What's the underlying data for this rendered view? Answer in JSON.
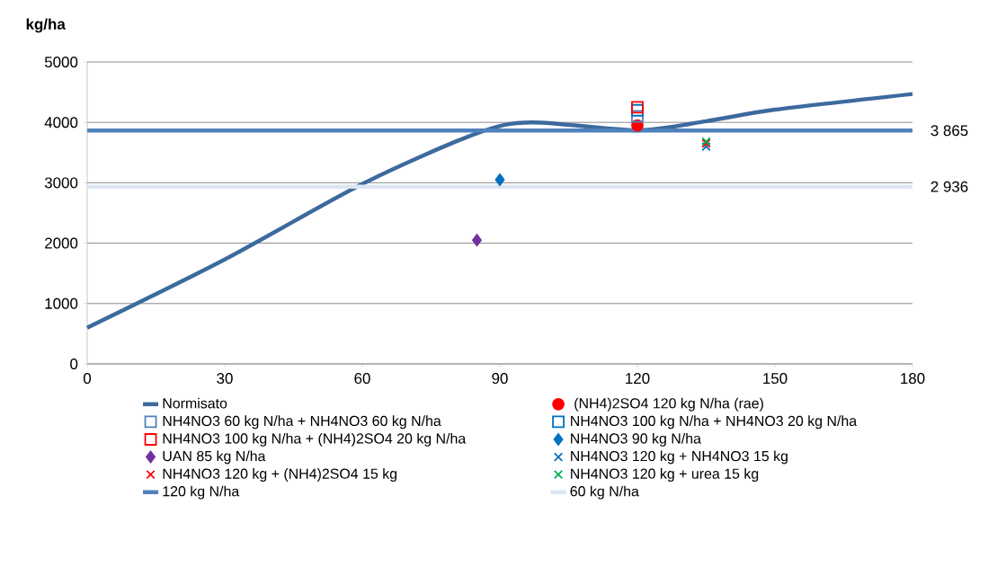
{
  "chart_data": {
    "type": "scatter",
    "ylabel": "kg/ha",
    "xlim": [
      0,
      180
    ],
    "xticks": [
      0,
      30,
      60,
      90,
      120,
      150,
      180
    ],
    "ylim": [
      0,
      5000
    ],
    "yticks": [
      0,
      1000,
      2000,
      3000,
      4000,
      5000
    ],
    "grid": "y",
    "legend": "bottom",
    "series": [
      {
        "name": "Normisato",
        "type": "line",
        "color": "#3d6a9e",
        "marker": "none",
        "x": [
          0,
          30,
          60,
          85,
          97,
          120,
          135,
          150,
          180
        ],
        "values": [
          600,
          1730,
          2980,
          3820,
          4000,
          3870,
          4020,
          4210,
          4470
        ]
      },
      {
        "name": " (NH4)2SO4 120 kg N/ha (rae)",
        "color": "#ff0000",
        "marker": "circle",
        "x": [
          120
        ],
        "values": [
          3950
        ]
      },
      {
        "name": "NH4NO3 60 kg N/ha + NH4NO3 60 kg N/ha",
        "color": "#4f81bd",
        "marker": "square",
        "x": [
          120
        ],
        "values": [
          4100
        ]
      },
      {
        "name": "NH4NO3 100 kg N/ha + NH4NO3 20 kg N/ha",
        "color": "#0070c0",
        "marker": "square",
        "x": [
          120
        ],
        "values": [
          4200
        ]
      },
      {
        "name": "NH4NO3 100 kg N/ha + (NH4)2SO4 20 kg N/ha",
        "color": "#ff0000",
        "marker": "square",
        "x": [
          120
        ],
        "values": [
          4250
        ]
      },
      {
        "name": "NH4NO3 90 kg N/ha",
        "color": "#0070c0",
        "marker": "diamond",
        "x": [
          90
        ],
        "values": [
          3050
        ]
      },
      {
        "name": "UAN 85 kg N/ha",
        "color": "#7030a0",
        "marker": "diamond",
        "x": [
          85
        ],
        "values": [
          2050
        ]
      },
      {
        "name": "NH4NO3 120 kg + NH4NO3 15 kg",
        "color": "#0070c0",
        "marker": "cross",
        "x": [
          135
        ],
        "values": [
          3600
        ]
      },
      {
        "name": "NH4NO3 120 kg + (NH4)2SO4 15 kg",
        "color": "#ff0000",
        "marker": "cross",
        "x": [
          135
        ],
        "values": [
          3650
        ]
      },
      {
        "name": "NH4NO3 120 kg + urea 15 kg",
        "color": "#00b050",
        "marker": "cross",
        "x": [
          135
        ],
        "values": [
          3680
        ]
      },
      {
        "name": "120 kg N/ha",
        "type": "line",
        "color": "#4f81bd",
        "marker": "none",
        "x": [
          0,
          180
        ],
        "values": [
          3865,
          3865
        ],
        "value_labels": [
          null,
          "3 865"
        ]
      },
      {
        "name": "60 kg N/ha",
        "type": "line",
        "color": "#dce6f2",
        "marker": "none",
        "x": [
          0,
          180
        ],
        "values": [
          2936,
          2936
        ],
        "value_labels": [
          null,
          "2 936"
        ]
      }
    ]
  }
}
